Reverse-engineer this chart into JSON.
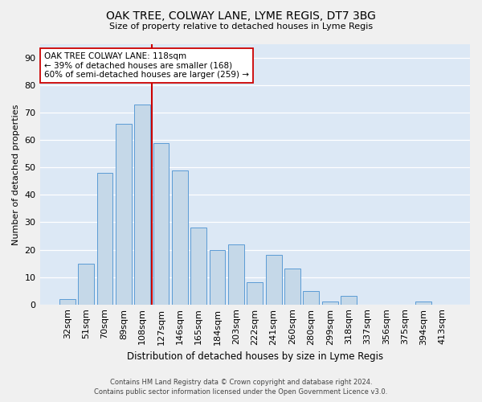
{
  "title": "OAK TREE, COLWAY LANE, LYME REGIS, DT7 3BG",
  "subtitle": "Size of property relative to detached houses in Lyme Regis",
  "xlabel": "Distribution of detached houses by size in Lyme Regis",
  "ylabel": "Number of detached properties",
  "categories": [
    "32sqm",
    "51sqm",
    "70sqm",
    "89sqm",
    "108sqm",
    "127sqm",
    "146sqm",
    "165sqm",
    "184sqm",
    "203sqm",
    "222sqm",
    "241sqm",
    "260sqm",
    "280sqm",
    "299sqm",
    "318sqm",
    "337sqm",
    "356sqm",
    "375sqm",
    "394sqm",
    "413sqm"
  ],
  "values": [
    2,
    15,
    48,
    66,
    73,
    59,
    49,
    28,
    20,
    22,
    8,
    18,
    13,
    5,
    1,
    3,
    0,
    0,
    0,
    1,
    0
  ],
  "bar_color": "#c5d8e8",
  "bar_edge_color": "#5b9bd5",
  "vline_color": "#cc0000",
  "annotation_text": "OAK TREE COLWAY LANE: 118sqm\n← 39% of detached houses are smaller (168)\n60% of semi-detached houses are larger (259) →",
  "annotation_box_color": "#ffffff",
  "annotation_box_edge": "#cc0000",
  "ylim": [
    0,
    95
  ],
  "yticks": [
    0,
    10,
    20,
    30,
    40,
    50,
    60,
    70,
    80,
    90
  ],
  "plot_bg_color": "#dce8f5",
  "fig_bg_color": "#f0f0f0",
  "grid_color": "#ffffff",
  "footer_line1": "Contains HM Land Registry data © Crown copyright and database right 2024.",
  "footer_line2": "Contains public sector information licensed under the Open Government Licence v3.0."
}
